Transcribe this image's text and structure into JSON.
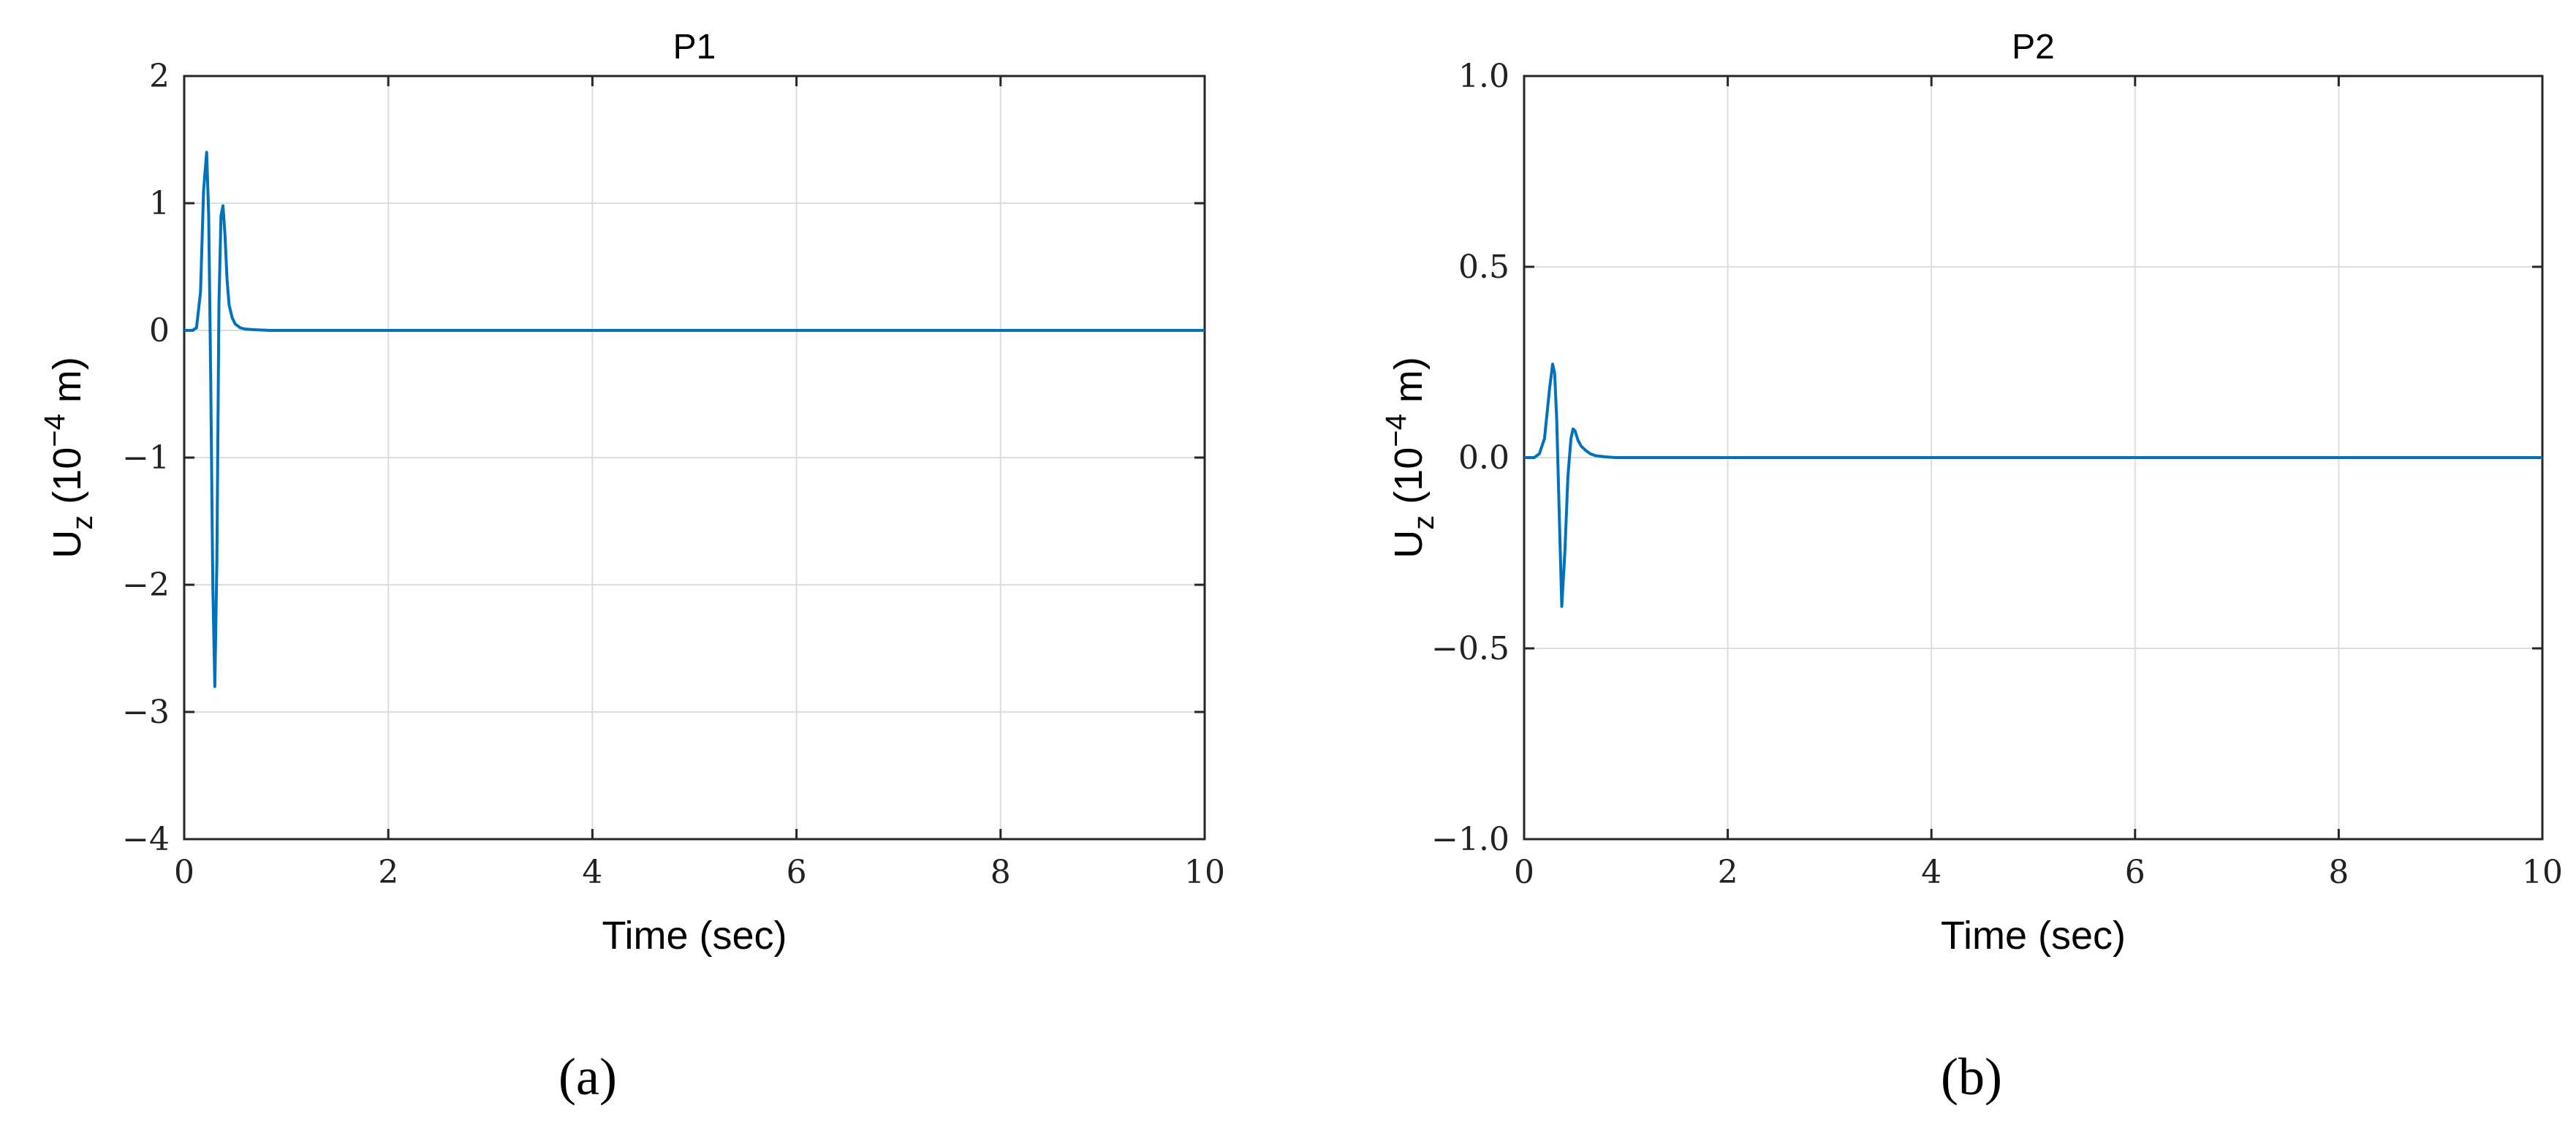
{
  "colors": {
    "series": "#0072BD"
  },
  "chart_data": [
    {
      "type": "line",
      "title": "P1",
      "xlabel": "Time (sec)",
      "ylabel_main": "U",
      "ylabel_sub": "z",
      "ylabel_pre": " (10",
      "ylabel_exp": "−4",
      "ylabel_post": " m)",
      "caption": "(a)",
      "xlim": [
        0,
        10
      ],
      "ylim": [
        -4,
        2
      ],
      "xticks": [
        0,
        2,
        4,
        6,
        8,
        10
      ],
      "yticks": [
        -4,
        -3,
        -2,
        -1,
        0,
        1,
        2
      ],
      "ytick_labels": [
        "−4",
        "−3",
        "−2",
        "−1",
        "0",
        "1",
        "2"
      ],
      "grid": true,
      "series": [
        {
          "x": [
            0,
            0.08,
            0.12,
            0.16,
            0.19,
            0.22,
            0.24,
            0.26,
            0.28,
            0.3,
            0.32,
            0.34,
            0.36,
            0.38,
            0.4,
            0.42,
            0.44,
            0.47,
            0.5,
            0.55,
            0.6,
            0.7,
            0.85,
            1.0,
            2,
            4,
            6,
            8,
            10
          ],
          "y": [
            0,
            0,
            0.02,
            0.3,
            1.1,
            1.4,
            0.9,
            -0.4,
            -2.0,
            -2.8,
            -1.8,
            0.2,
            0.9,
            0.98,
            0.75,
            0.4,
            0.2,
            0.1,
            0.05,
            0.02,
            0.01,
            0.005,
            0,
            0,
            0,
            0,
            0,
            0,
            0
          ]
        }
      ]
    },
    {
      "type": "line",
      "title": "P2",
      "xlabel": "Time (sec)",
      "ylabel_main": "U",
      "ylabel_sub": "z",
      "ylabel_pre": " (10",
      "ylabel_exp": "−4",
      "ylabel_post": " m)",
      "caption": "(b)",
      "xlim": [
        0,
        10
      ],
      "ylim": [
        -1,
        1
      ],
      "xticks": [
        0,
        2,
        4,
        6,
        8,
        10
      ],
      "yticks": [
        -1,
        -0.5,
        0,
        0.5,
        1
      ],
      "ytick_labels": [
        "−1.0",
        "−0.5",
        "0.0",
        "0.5",
        "1.0"
      ],
      "grid": true,
      "series": [
        {
          "x": [
            0,
            0.1,
            0.15,
            0.2,
            0.25,
            0.28,
            0.3,
            0.32,
            0.34,
            0.37,
            0.4,
            0.43,
            0.46,
            0.48,
            0.5,
            0.53,
            0.56,
            0.6,
            0.65,
            0.7,
            0.8,
            0.9,
            1.0,
            2,
            4,
            6,
            8,
            10
          ],
          "y": [
            0,
            0,
            0.01,
            0.05,
            0.18,
            0.245,
            0.22,
            0.1,
            -0.1,
            -0.39,
            -0.25,
            -0.05,
            0.05,
            0.075,
            0.07,
            0.045,
            0.03,
            0.02,
            0.01,
            0.005,
            0.002,
            0,
            0,
            0,
            0,
            0,
            0,
            0
          ]
        }
      ]
    }
  ]
}
